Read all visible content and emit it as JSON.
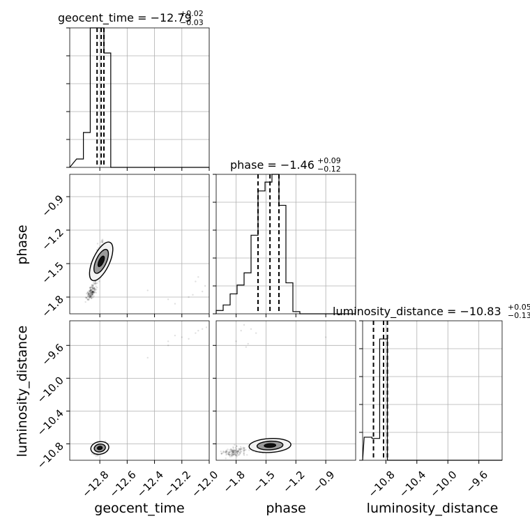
{
  "figure": {
    "parameters": [
      "geocent_time",
      "phase",
      "luminosity_distance"
    ]
  },
  "chart_data": [
    {
      "type": "histogram",
      "panel": "geocent_time",
      "title": {
        "prefix": "geocent_time = −12.79",
        "plus": "+0.02",
        "minus": "−0.03"
      },
      "xlabel": "geocent_time",
      "xlim": [
        -13.02,
        -12.0
      ],
      "xticks": [
        "−12.8",
        "−12.6",
        "−12.4",
        "−12.2",
        "−12.0"
      ],
      "xtick_values": [
        -12.8,
        -12.6,
        -12.4,
        -12.2,
        -12.0
      ],
      "bin_edges": [
        -12.97,
        -12.92,
        -12.87,
        -12.82,
        -12.77,
        -12.72,
        -12.67
      ],
      "counts": [
        0.6,
        2.5,
        10.0,
        10.0,
        8.2,
        0.0
      ],
      "ylim": [
        0,
        10
      ],
      "quantiles": [
        -12.82,
        -12.79,
        -12.77
      ],
      "grid": true
    },
    {
      "type": "histogram",
      "panel": "phase",
      "title": {
        "prefix": "phase = −1.46",
        "plus": "+0.09",
        "minus": "−0.12"
      },
      "xlabel": "phase",
      "xlim": [
        -2.0,
        -0.6
      ],
      "xticks": [
        "−1.8",
        "−1.5",
        "−1.2",
        "−0.9"
      ],
      "xtick_values": [
        -1.8,
        -1.5,
        -1.2,
        -0.9
      ],
      "bin_edges": [
        -2.0,
        -1.93,
        -1.86,
        -1.79,
        -1.72,
        -1.65,
        -1.58,
        -1.51,
        -1.44,
        -1.37,
        -1.3,
        -1.23,
        -1.16
      ],
      "counts": [
        0.3,
        0.8,
        1.8,
        2.6,
        3.7,
        7.1,
        11.1,
        11.9,
        12.6,
        9.8,
        2.8,
        0.2
      ],
      "ylim": [
        0,
        12.6
      ],
      "quantiles": [
        -1.58,
        -1.46,
        -1.37
      ],
      "grid": true
    },
    {
      "type": "histogram",
      "panel": "luminosity_distance",
      "title": {
        "prefix": "luminosity_distance = −10.83",
        "plus": "+0.05",
        "minus": "−0.13"
      },
      "xlabel": "luminosity_distance",
      "xlim": [
        -11.1,
        -9.3
      ],
      "xticks": [
        "−10.8",
        "−10.4",
        "−10.0",
        "−9.6"
      ],
      "xtick_values": [
        -10.8,
        -10.4,
        -10.0,
        -9.6
      ],
      "bin_edges": [
        -11.08,
        -10.98,
        -10.88,
        -10.78
      ],
      "counts": [
        1.9,
        1.8,
        10.0
      ],
      "ylim": [
        0,
        11.5
      ],
      "quantiles": [
        -10.96,
        -10.83,
        -10.78
      ],
      "grid": true
    },
    {
      "type": "scatter",
      "panel": "phase_vs_geocent_time",
      "xlabel": "",
      "ylabel": "phase",
      "xlim": [
        -13.02,
        -12.0
      ],
      "ylim": [
        -1.95,
        -0.7
      ],
      "yticks": [
        "−0.9",
        "−1.2",
        "−1.5",
        "−1.8"
      ],
      "ytick_values": [
        -0.9,
        -1.2,
        -1.5,
        -1.8
      ],
      "grid": true
    },
    {
      "type": "scatter",
      "panel": "luminosity_distance_vs_geocent_time",
      "xlabel": "geocent_time",
      "ylabel": "luminosity_distance",
      "xlim": [
        -13.02,
        -12.0
      ],
      "ylim": [
        -11.0,
        -9.3
      ],
      "yticks": [
        "−9.6",
        "−10.0",
        "−10.4",
        "−10.8"
      ],
      "ytick_values": [
        -9.6,
        -10.0,
        -10.4,
        -10.8
      ],
      "grid": true
    },
    {
      "type": "scatter",
      "panel": "luminosity_distance_vs_phase",
      "xlabel": "phase",
      "ylabel": "",
      "xlim": [
        -2.0,
        -0.6
      ],
      "ylim": [
        -11.0,
        -9.3
      ],
      "grid": true
    }
  ]
}
